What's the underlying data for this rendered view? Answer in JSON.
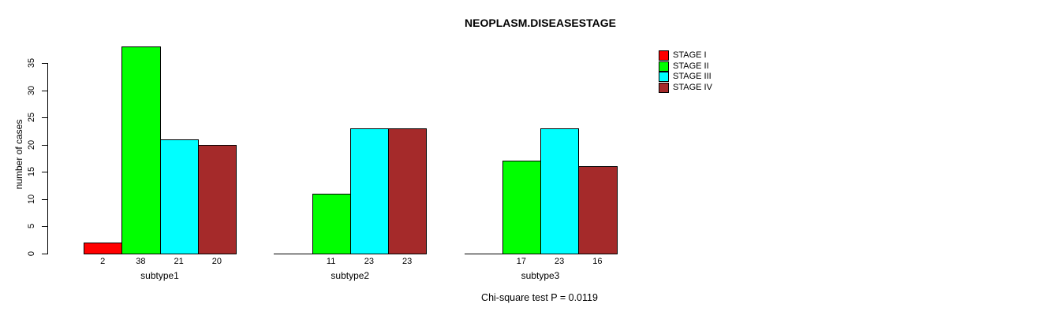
{
  "chart_data": {
    "type": "bar",
    "title": "NEOPLASM.DISEASESTAGE",
    "ylabel": "number of cases",
    "xlabel": "",
    "annotation": "Chi-square test P = 0.0119",
    "categories": [
      "subtype1",
      "subtype2",
      "subtype3"
    ],
    "series": [
      {
        "name": "STAGE I",
        "color": "#FF0000",
        "values": [
          2,
          0,
          0
        ],
        "labels": [
          "2",
          "",
          ""
        ]
      },
      {
        "name": "STAGE II",
        "color": "#00FF00",
        "values": [
          38,
          11,
          17
        ],
        "labels": [
          "38",
          "11",
          "17"
        ]
      },
      {
        "name": "STAGE III",
        "color": "#00FFFF",
        "values": [
          21,
          23,
          23
        ],
        "labels": [
          "21",
          "23",
          "23"
        ]
      },
      {
        "name": "STAGE IV",
        "color": "#A52A2A",
        "values": [
          20,
          23,
          16
        ],
        "labels": [
          "20",
          "23",
          "16"
        ]
      }
    ],
    "yticks": [
      0,
      5,
      10,
      15,
      20,
      25,
      30,
      35
    ],
    "ylim": [
      0,
      35
    ],
    "grid": false,
    "legend_position": "right",
    "bar_border_color": "#000000",
    "background_color": "#FFFFFF"
  }
}
